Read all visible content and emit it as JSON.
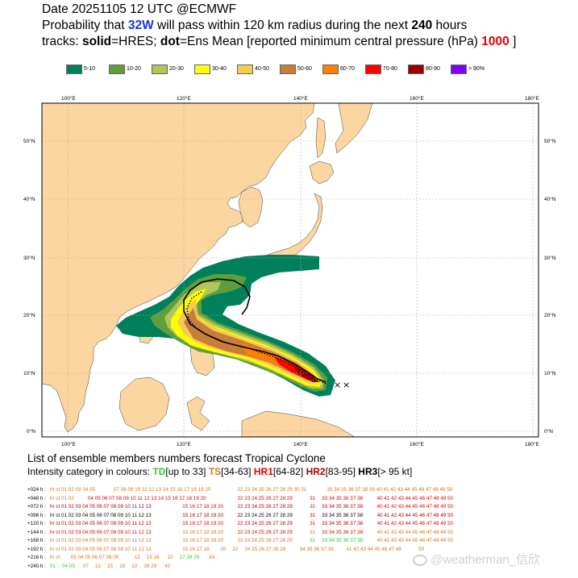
{
  "header": {
    "line1": "Date 20251105 12 UTC    @ECMWF",
    "line2_pre": "Probability that ",
    "storm_id": "32W",
    "line2_post": " will pass within 120 km radius during the next ",
    "hours": "240",
    "hours_unit": " hours",
    "line3_a": "tracks: ",
    "solid": "solid",
    "line3_b": "=HRES; ",
    "dot": "dot",
    "line3_c": "=Ens Mean [reported minimum central pressure (hPa) ",
    "pressure": "1000",
    "line3_d": " ]"
  },
  "legend": [
    {
      "label": "5-10",
      "color": "#00805a"
    },
    {
      "label": "10-20",
      "color": "#5f9e3c"
    },
    {
      "label": "20-30",
      "color": "#b2c45a"
    },
    {
      "label": "30-40",
      "color": "#fefe00"
    },
    {
      "label": "40-50",
      "color": "#f5cc50"
    },
    {
      "label": "50-60",
      "color": "#c97d3a"
    },
    {
      "label": "60-70",
      "color": "#ff8000"
    },
    {
      "label": "70-80",
      "color": "#ff0000"
    },
    {
      "label": "80-90",
      "color": "#9a0000"
    },
    {
      "label": "> 90%",
      "color": "#8000ff"
    }
  ],
  "map": {
    "lon_labels": [
      "100°E",
      "120°E",
      "140°E",
      "160°E",
      "180°E"
    ],
    "lat_labels": [
      "50°N",
      "40°N",
      "30°N",
      "20°N",
      "10°N",
      "0°N"
    ],
    "land_color": "#fcd6a0",
    "sea_color": "#ffffff",
    "grid_color": "#b0b0b0",
    "markers": [
      "×",
      "×"
    ]
  },
  "ensemble": {
    "title": "List of ensemble members numbers forecast Tropical Cyclone",
    "key_prefix": "Intensity category in colours: ",
    "td": "TD",
    "td_range": "[up to 33]",
    "ts": "TS",
    "ts_range": "[34-63]",
    "hr1": "HR1",
    "hr1_range": "[64-82]",
    "hr2": "HR2",
    "hr2_range": "[83-95]",
    "hr3": "HR3",
    "hr3_range": "[> 95 kt]",
    "rows": [
      {
        "lead": "+024 h :",
        "cells": [
          [
            "hr ct 01 02 03 04 05",
            "ts"
          ],
          [
            "07 08 09 10 11 12 13 14 15 16 17 18 19 20",
            "ts"
          ],
          [
            "22 23 24 25 26 27 28 29 30 31",
            "ts"
          ],
          [
            "33 34 35 36 37 38 39 40 41 42 43 44 45 46 47 48 49 50",
            "ts"
          ]
        ]
      },
      {
        "lead": "+048 h :",
        "cells": [
          [
            "hr ct 01 02",
            "ts"
          ],
          [
            "04 05 06 07 08 09 10 11 12 13 14 15 16 17 18 19 20",
            "hr1"
          ],
          [
            "22 23 24 25 26 27 28 29",
            "hr1"
          ],
          [
            "31",
            "hr1"
          ],
          [
            "33 34 35 36 37 38",
            "hr1"
          ],
          [
            "40 41 42 43 44 45 46 47 48 49 50",
            "hr1"
          ]
        ]
      },
      {
        "lead": "+072 h :",
        "cells": [
          [
            "hr ct 01 02 03 04 05 06 07 08 09 10 11 12 13",
            "hr2"
          ],
          [
            "15 16 17 18 19 20",
            "hr1"
          ],
          [
            "22 23 24 25 26 27 28 29",
            "hr2"
          ],
          [
            "31",
            "hr1"
          ],
          [
            "33 34 35 36 37 38",
            "hr2"
          ],
          [
            "40 41 42 43 44 45 46 47 48 49 50",
            "hr1"
          ]
        ]
      },
      {
        "lead": "+096 h :",
        "cells": [
          [
            "hr ct 01 02 03 04 05 06 07 08 09 10 11 12 13",
            "hr3"
          ],
          [
            "15 16 17 18 19 20",
            "hr2"
          ],
          [
            "22 23 24 25 26 27 28 29",
            "hr3"
          ],
          [
            "31",
            "hr2"
          ],
          [
            "33 34 35 36 37 38",
            "hr3"
          ],
          [
            "40 41 42 43 44 45 46 47 48 49 50",
            "hr2"
          ]
        ]
      },
      {
        "lead": "+120 h :",
        "cells": [
          [
            "hr ct 01 02 03 04 05 06 07 08 09 10 11 12 13",
            "hr2"
          ],
          [
            "15 16 17 18 19 20",
            "hr1"
          ],
          [
            "22 23 24 25 26 27 28 29",
            "hr2"
          ],
          [
            "31",
            "hr1"
          ],
          [
            "33 34 35 36 37 38",
            "hr2"
          ],
          [
            "40 41 42 43 44 45 46 47 48 49 50",
            "hr1"
          ]
        ]
      },
      {
        "lead": "+144 h :",
        "cells": [
          [
            "hr ct 01 02 03 04 05 06 07 08 09 10 11 12 13",
            "hr1"
          ],
          [
            "15 16 17 18 19 20",
            "ts"
          ],
          [
            "22 23 24 25 26 27 28 29",
            "hr1"
          ],
          [
            "31",
            "ts"
          ],
          [
            "33 34 35 36 37 38",
            "hr1"
          ],
          [
            "40 41 42 43 44 45 46 47 48 49 50",
            "ts"
          ]
        ]
      },
      {
        "lead": "+168 h :",
        "cells": [
          [
            "hr ct 01 02 03 04 05 06 07 08 09 10 11 12 13",
            "ts"
          ],
          [
            "15 16 17 18 19 20",
            "ts"
          ],
          [
            "22 23 24 25 26 27 28 29",
            "ts"
          ],
          [
            "31",
            "td"
          ],
          [
            "33 34 35 36 37 38",
            "td"
          ],
          [
            "40 41 42 43 44 45 46 47 48 49 50",
            "ts"
          ]
        ]
      },
      {
        "lead": "+192 h :",
        "cells": [
          [
            "hr ct 01 02 03 04 05 06 07 08 09 10 11 12 13",
            "ts"
          ],
          [
            "15 16 17 18",
            "ts"
          ],
          [
            "20",
            "ts"
          ],
          [
            "22",
            "ts"
          ],
          [
            "24 25 26 27 28 29",
            "ts"
          ],
          [
            "34 35 36 37 38",
            "ts"
          ],
          [
            "41 42 43 44 45 46 47 48",
            "ts"
          ],
          [
            "50",
            "ts"
          ]
        ]
      },
      {
        "lead": "+216 h :",
        "cells": [
          [
            "hr ct",
            "ts"
          ],
          [
            "03 04 05 06 07 08 09",
            "ts"
          ],
          [
            "12",
            "ts"
          ],
          [
            "15 16",
            "ts"
          ],
          [
            "22",
            "ts"
          ],
          [
            "27 28 29",
            "td"
          ],
          [
            "43",
            "ts"
          ]
        ]
      },
      {
        "lead": "+240 h :",
        "cells": [
          [
            "01",
            "td"
          ],
          [
            "04 05",
            "td"
          ],
          [
            "07",
            "td"
          ],
          [
            "12",
            "ts"
          ],
          [
            "15",
            "ts"
          ],
          [
            "18",
            "ts"
          ],
          [
            "22",
            "ts"
          ],
          [
            "28 29",
            "ts"
          ],
          [
            "43",
            "ts"
          ]
        ]
      }
    ]
  },
  "watermark": "@weatherman_信欣"
}
